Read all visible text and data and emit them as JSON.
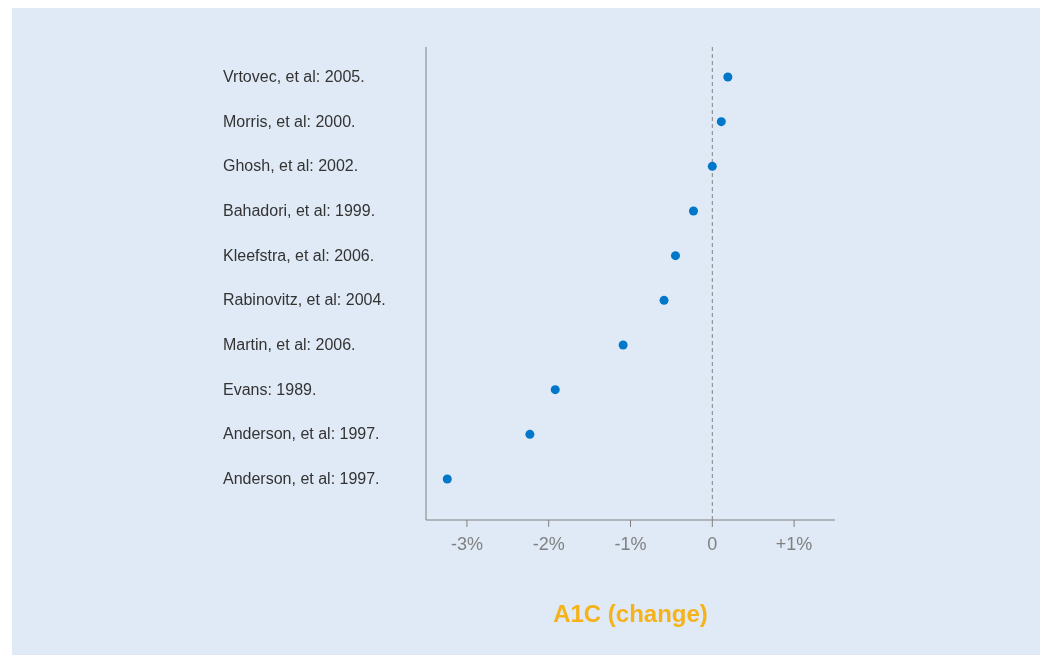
{
  "chart_data": {
    "type": "scatter",
    "xlabel": "A1C (change)",
    "categories": [
      "Vrtovec, et al: 2005.",
      "Morris, et al: 2000.",
      "Ghosh, et al: 2002.",
      "Bahadori, et al: 1999.",
      "Kleefstra, et al: 2006.",
      "Rabinovitz, et al: 2004.",
      "Martin, et al: 2006.",
      "Evans: 1989.",
      "Anderson, et al: 1997.",
      "Anderson, et al: 1997."
    ],
    "orientation": "horizontal",
    "series": [
      {
        "color": "#0077c8",
        "values": [
          0.19,
          0.11,
          0,
          -0.23,
          -0.45,
          -0.59,
          -1.09,
          -1.92,
          -2.23,
          -3.24
        ]
      }
    ],
    "xlim": [
      -3.5,
      1.5
    ],
    "xticks": [
      {
        "value": -3,
        "label": "-3%"
      },
      {
        "value": -2,
        "label": "-2%"
      },
      {
        "value": -1,
        "label": "-1%"
      },
      0,
      {
        "value": 1,
        "label": "+1%"
      }
    ],
    "ref_lines": [
      {
        "axis": "x",
        "value": 0,
        "color": "#808080",
        "line_style": "dashed"
      }
    ],
    "grid": false,
    "legend": false,
    "marker": "circle"
  }
}
